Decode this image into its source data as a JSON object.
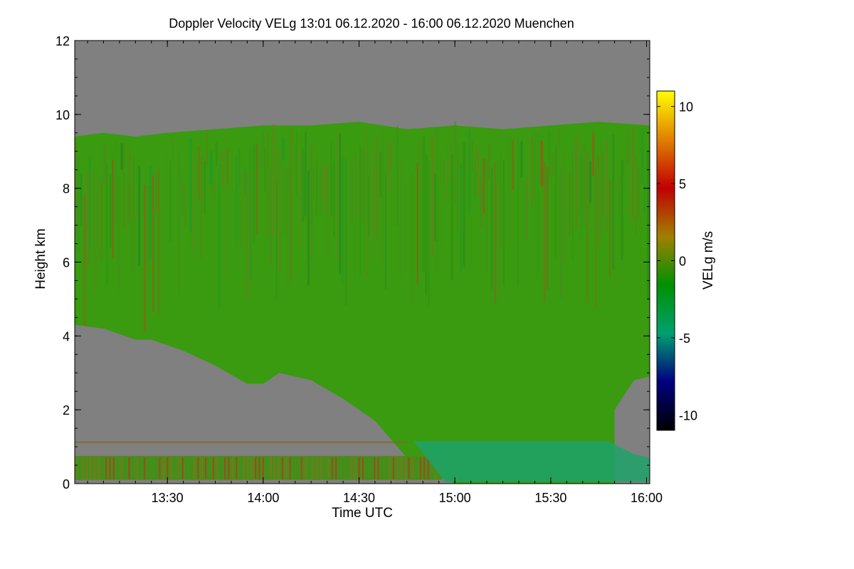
{
  "chart_data": {
    "type": "heatmap",
    "title": "Doppler Velocity VELg   13:01 06.12.2020 - 16:00 06.12.2020 Muenchen",
    "xlabel": "Time UTC",
    "ylabel": "Height km",
    "colorbar_label": "VELg m/s",
    "xlim": [
      "13:01",
      "16:01"
    ],
    "x_ticks": [
      "13:30",
      "14:00",
      "14:30",
      "15:00",
      "15:30",
      "16:00"
    ],
    "ylim": [
      0,
      12
    ],
    "y_ticks": [
      "0",
      "2",
      "4",
      "6",
      "8",
      "10",
      "12"
    ],
    "clim": [
      -11,
      11
    ],
    "colorbar_ticks": [
      "10",
      "5",
      "0",
      "-5",
      "-10"
    ],
    "no_data_color": "#808080",
    "colormap": [
      "#000000",
      "#000080",
      "#00A070",
      "#009000",
      "#A08000",
      "#C00000",
      "#E08000",
      "#FFFF00"
    ],
    "echo_top_km": [
      {
        "time": "13:01",
        "height": 9.4
      },
      {
        "time": "13:10",
        "height": 9.5
      },
      {
        "time": "13:20",
        "height": 9.4
      },
      {
        "time": "13:30",
        "height": 9.5
      },
      {
        "time": "13:45",
        "height": 9.6
      },
      {
        "time": "14:00",
        "height": 9.7
      },
      {
        "time": "14:15",
        "height": 9.7
      },
      {
        "time": "14:30",
        "height": 9.8
      },
      {
        "time": "14:45",
        "height": 9.6
      },
      {
        "time": "15:00",
        "height": 9.7
      },
      {
        "time": "15:15",
        "height": 9.6
      },
      {
        "time": "15:30",
        "height": 9.7
      },
      {
        "time": "15:45",
        "height": 9.8
      },
      {
        "time": "16:01",
        "height": 9.7
      }
    ],
    "echo_base_km": [
      {
        "time": "13:01",
        "height": 4.3
      },
      {
        "time": "13:10",
        "height": 4.2
      },
      {
        "time": "13:20",
        "height": 3.9
      },
      {
        "time": "13:25",
        "height": 3.9
      },
      {
        "time": "13:35",
        "height": 3.6
      },
      {
        "time": "13:45",
        "height": 3.2
      },
      {
        "time": "13:55",
        "height": 2.7
      },
      {
        "time": "14:00",
        "height": 2.7
      },
      {
        "time": "14:05",
        "height": 3.0
      },
      {
        "time": "14:15",
        "height": 2.8
      },
      {
        "time": "14:25",
        "height": 2.3
      },
      {
        "time": "14:35",
        "height": 1.7
      },
      {
        "time": "14:40",
        "height": 1.2
      },
      {
        "time": "14:45",
        "height": 0.7
      },
      {
        "time": "14:52",
        "height": 0.3
      },
      {
        "time": "15:00",
        "height": 0.0
      },
      {
        "time": "15:50",
        "height": 0.0
      },
      {
        "time": "15:50",
        "height": 2.0
      },
      {
        "time": "15:56",
        "height": 2.8
      },
      {
        "time": "16:01",
        "height": 2.9
      }
    ]
  }
}
